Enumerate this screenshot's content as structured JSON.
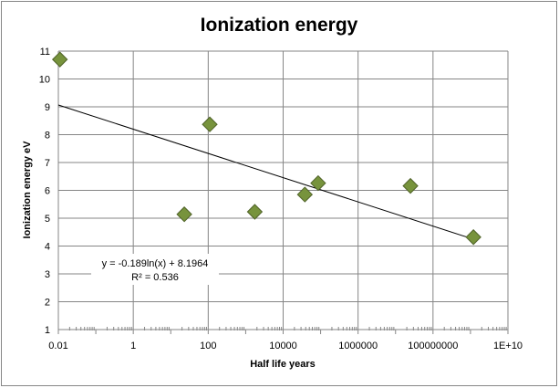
{
  "chart_data": {
    "type": "scatter",
    "title": "Ionization energy",
    "xlabel": "Half life years",
    "ylabel": "Ionization energy eV",
    "x_scale": "log",
    "xlim": [
      0.01,
      10000000000
    ],
    "ylim": [
      1,
      11
    ],
    "x_tick_labels": [
      "0.01",
      "1",
      "100",
      "10000",
      "1000000",
      "100000000",
      "1E+10"
    ],
    "y_ticks": [
      1,
      2,
      3,
      4,
      5,
      6,
      7,
      8,
      9,
      10,
      11
    ],
    "grid": true,
    "legend": "none",
    "marker_color": "#77933C",
    "marker_edge_color": "#4F6228",
    "points": [
      {
        "x": 0.011,
        "y": 10.7
      },
      {
        "x": 23,
        "y": 5.14
      },
      {
        "x": 110,
        "y": 8.37
      },
      {
        "x": 1750,
        "y": 5.23
      },
      {
        "x": 38000,
        "y": 5.85
      },
      {
        "x": 86000,
        "y": 6.26
      },
      {
        "x": 25000000,
        "y": 6.16
      },
      {
        "x": 1200000000,
        "y": 4.32
      }
    ],
    "trendline": {
      "type": "logarithmic",
      "a": -0.189,
      "b": 8.1964,
      "x_range": [
        0.01,
        1200000000
      ],
      "equation": "y = -0.189ln(x) + 8.1964",
      "r_squared": "R² = 0.536"
    }
  }
}
